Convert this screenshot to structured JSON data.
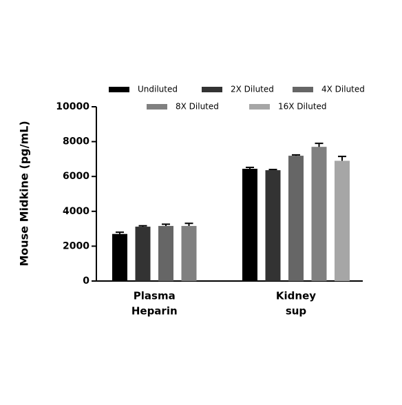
{
  "chart_data": {
    "type": "bar",
    "y_label": "Mouse Midkine (pg/mL)",
    "categories": [
      [
        "Plasma",
        "Heparin"
      ],
      [
        "Kidney",
        "sup"
      ]
    ],
    "series": [
      {
        "name": "Undiluted",
        "color": "#000000",
        "values": [
          2700,
          6440
        ],
        "errors": [
          100,
          80
        ]
      },
      {
        "name": "2X Diluted",
        "color": "#333333",
        "values": [
          3120,
          6360
        ],
        "errors": [
          50,
          40
        ]
      },
      {
        "name": "4X Diluted",
        "color": "#666666",
        "values": [
          3160,
          7190
        ],
        "errors": [
          100,
          50
        ]
      },
      {
        "name": "8X Diluted",
        "color": "#808080",
        "values": [
          3160,
          7700
        ],
        "errors": [
          150,
          200
        ]
      },
      {
        "name": "16X Diluted",
        "color": "#a6a6a6",
        "values": [
          null,
          6900
        ],
        "errors": [
          null,
          250
        ]
      }
    ],
    "ylim": [
      0,
      10000
    ],
    "yticks": [
      0,
      2000,
      4000,
      6000,
      8000,
      10000
    ]
  }
}
